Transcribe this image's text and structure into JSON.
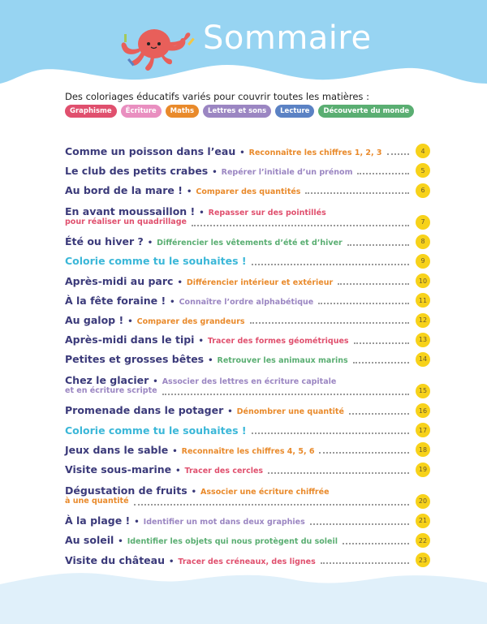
{
  "header": {
    "title": "Sommaire",
    "sky_color": "#97d4f2"
  },
  "intro": "Des coloriages éducatifs variés pour couvrir toutes les matières :",
  "categories": {
    "graphisme": {
      "label": "Graphisme",
      "color": "#e0506e"
    },
    "ecriture": {
      "label": "Écriture",
      "color": "#e98fc0"
    },
    "maths": {
      "label": "Maths",
      "color": "#e98a2b"
    },
    "lettres": {
      "label": "Lettres et sons",
      "color": "#9b86c2"
    },
    "lecture": {
      "label": "Lecture",
      "color": "#5b82c4"
    },
    "decouverte": {
      "label": "Découverte du monde",
      "color": "#5aae72"
    }
  },
  "free_color": "#3bb7d8",
  "items": [
    {
      "title": "Comme un poisson dans l’eau",
      "subtitle": "Reconnaître les chiffres 1, 2, 3",
      "category": "maths",
      "page": "4"
    },
    {
      "title": "Le club des petits crabes",
      "subtitle": "Repérer l’initiale d’un prénom",
      "category": "lettres",
      "page": "5"
    },
    {
      "title": "Au bord de la mare !",
      "subtitle": "Comparer des quantités",
      "category": "maths",
      "page": "6"
    },
    {
      "title": "En avant moussaillon !",
      "subtitle": "Repasser sur des pointillés",
      "subtitle2": "pour réaliser un quadrillage",
      "category": "graphisme",
      "page": "7"
    },
    {
      "title": "Été ou hiver ?",
      "subtitle": "Différencier les vêtements d’été et d’hiver",
      "category": "decouverte",
      "page": "8"
    },
    {
      "title": "Colorie comme tu le souhaites !",
      "category": "free",
      "page": "9"
    },
    {
      "title": "Après-midi au parc",
      "subtitle": "Différencier intérieur et extérieur",
      "category": "maths",
      "page": "10"
    },
    {
      "title": "À la fête foraine !",
      "subtitle": "Connaître l’ordre alphabétique",
      "category": "lettres",
      "page": "11"
    },
    {
      "title": "Au galop !",
      "subtitle": "Comparer des grandeurs",
      "category": "maths",
      "page": "12"
    },
    {
      "title": "Après-midi dans le tipi",
      "subtitle": "Tracer des formes géométriques",
      "category": "graphisme",
      "page": "13"
    },
    {
      "title": "Petites et grosses bêtes",
      "subtitle": "Retrouver les animaux marins",
      "category": "decouverte",
      "page": "14"
    },
    {
      "title": "Chez le glacier",
      "subtitle": "Associer des lettres en écriture capitale",
      "subtitle2": "et en écriture scripte",
      "category": "lettres",
      "page": "15"
    },
    {
      "title": "Promenade dans le potager",
      "subtitle": "Dénombrer une quantité",
      "category": "maths",
      "page": "16"
    },
    {
      "title": "Colorie comme tu le souhaites !",
      "category": "free",
      "page": "17"
    },
    {
      "title": "Jeux dans le sable",
      "subtitle": "Reconnaître les chiffres 4, 5, 6",
      "category": "maths",
      "page": "18"
    },
    {
      "title": "Visite sous-marine",
      "subtitle": "Tracer des cercles",
      "category": "graphisme",
      "page": "19"
    },
    {
      "title": "Dégustation de fruits",
      "subtitle": "Associer une écriture chiffrée",
      "subtitle2": "à une quantité",
      "category": "maths",
      "page": "20"
    },
    {
      "title": "À la plage !",
      "subtitle": "Identifier un mot dans deux graphies",
      "category": "lettres",
      "page": "21"
    },
    {
      "title": "Au soleil",
      "subtitle": "Identifier les objets qui nous protègent du soleil",
      "category": "decouverte",
      "page": "22"
    },
    {
      "title": "Visite du château",
      "subtitle": "Tracer des créneaux, des lignes",
      "category": "graphisme",
      "page": "23"
    }
  ]
}
